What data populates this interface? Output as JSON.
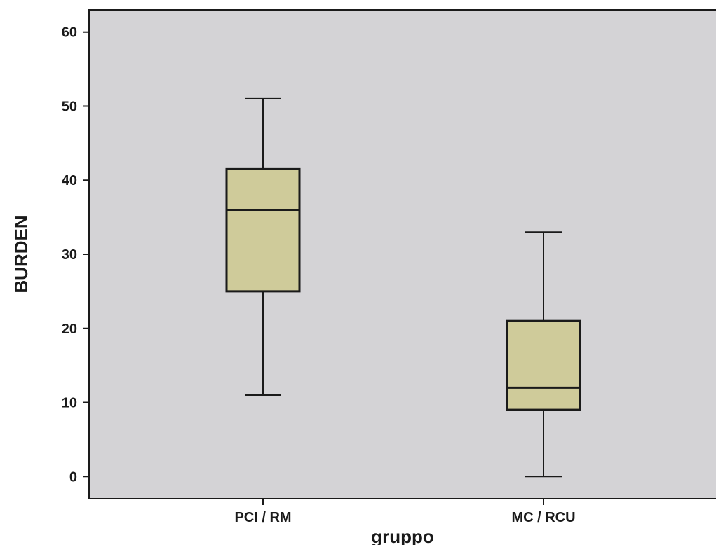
{
  "chart_data": {
    "type": "boxplot",
    "xlabel": "gruppo",
    "ylabel": "BURDEN",
    "ylim": [
      -3,
      63
    ],
    "yticks": [
      0,
      10,
      20,
      30,
      40,
      50,
      60
    ],
    "grid": false,
    "categories": [
      "PCI / RM",
      "MC / RCU"
    ],
    "boxes": [
      {
        "category": "PCI / RM",
        "min": 11,
        "q1": 25,
        "median": 36,
        "q3": 41.5,
        "max": 51
      },
      {
        "category": "MC / RCU",
        "min": 0,
        "q1": 9,
        "median": 12,
        "q3": 21,
        "max": 33
      }
    ],
    "colors": {
      "plot_background": "#d4d3d6",
      "box_fill": "#cfcb9a",
      "stroke": "#1a1a1a"
    }
  }
}
